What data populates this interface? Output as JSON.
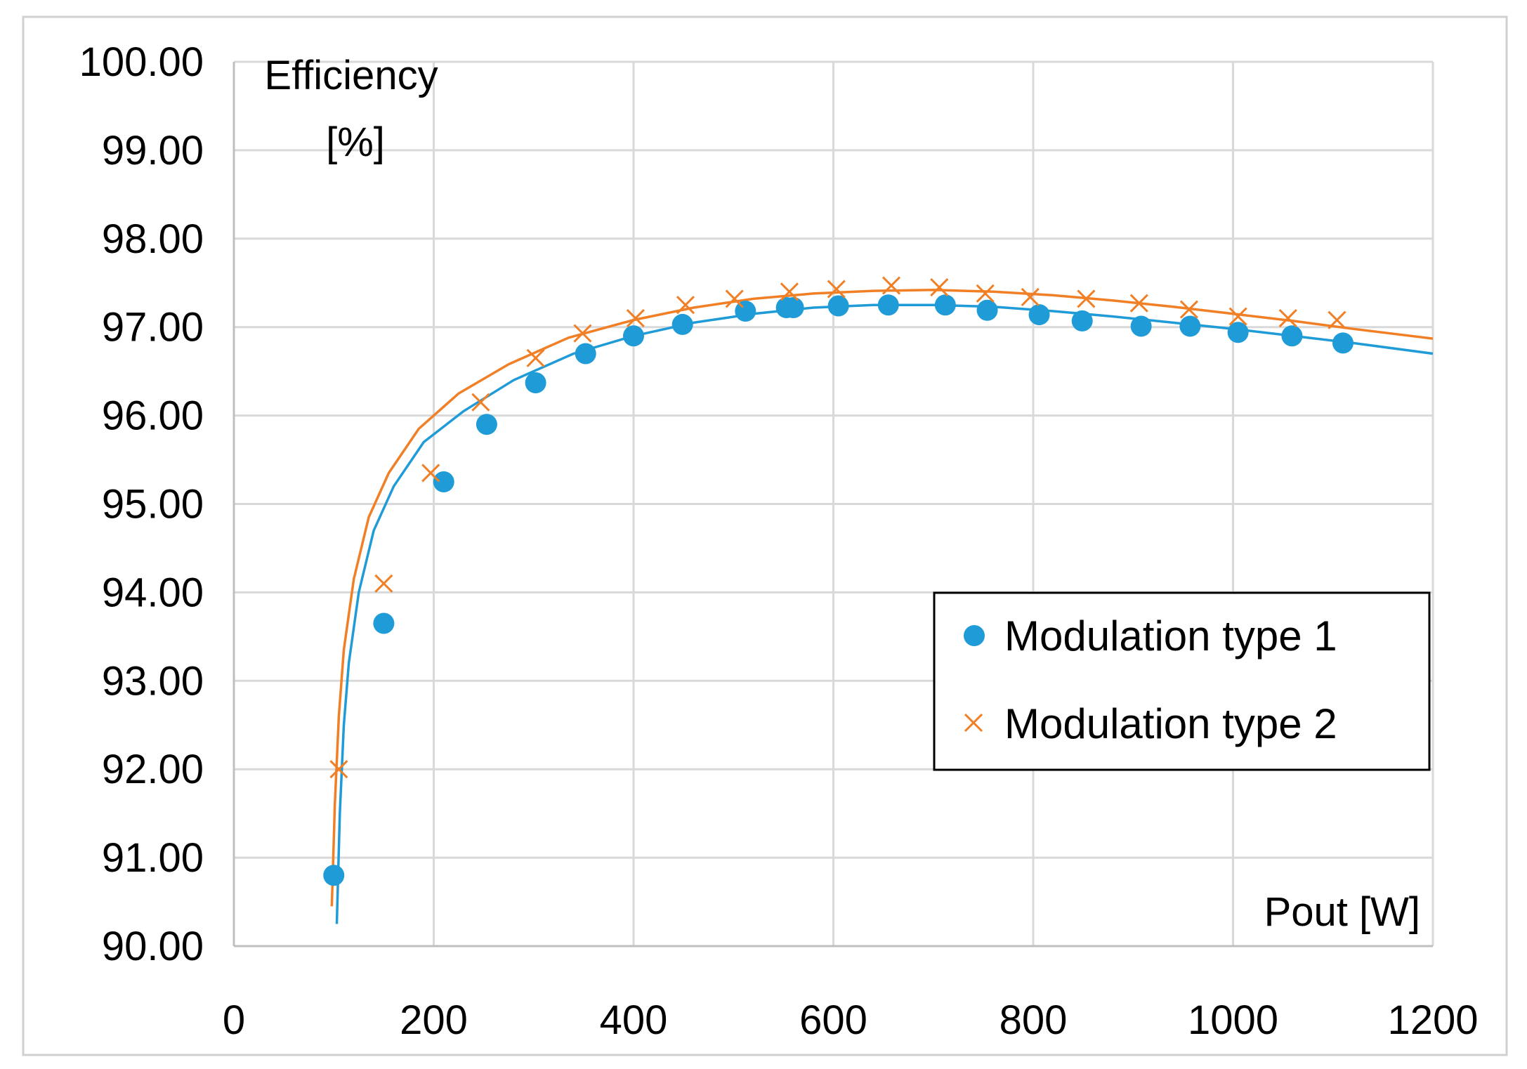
{
  "chart_data": {
    "type": "scatter",
    "title": "",
    "xlabel": "Pout [W]",
    "ylabel": [
      "Efficiency",
      "[%]"
    ],
    "xlim": [
      0,
      1200
    ],
    "ylim": [
      90,
      100
    ],
    "xticks": [
      0,
      200,
      400,
      600,
      800,
      1000,
      1200
    ],
    "yticks": [
      90,
      91,
      92,
      93,
      94,
      95,
      96,
      97,
      98,
      99,
      100
    ],
    "xtick_labels": [
      "0",
      "200",
      "400",
      "600",
      "800",
      "1000",
      "1200"
    ],
    "ytick_labels": [
      "90.00",
      "91.00",
      "92.00",
      "93.00",
      "94.00",
      "95.00",
      "96.00",
      "97.00",
      "98.00",
      "99.00",
      "100.00"
    ],
    "grid": true,
    "legend_position": "lower-right",
    "series": [
      {
        "name": "Modulation type 1",
        "marker": "circle",
        "color": "#1f9bd7",
        "points": [
          [
            100,
            90.8
          ],
          [
            150,
            93.65
          ],
          [
            210,
            95.25
          ],
          [
            253,
            95.9
          ],
          [
            302,
            96.37
          ],
          [
            352,
            96.7
          ],
          [
            400,
            96.9
          ],
          [
            449,
            97.03
          ],
          [
            512,
            97.18
          ],
          [
            553,
            97.22
          ],
          [
            560,
            97.22
          ],
          [
            605,
            97.24
          ],
          [
            655,
            97.25
          ],
          [
            712,
            97.25
          ],
          [
            754,
            97.19
          ],
          [
            806,
            97.14
          ],
          [
            849,
            97.07
          ],
          [
            908,
            97.01
          ],
          [
            957,
            97.01
          ],
          [
            1005,
            96.94
          ],
          [
            1059,
            96.9
          ],
          [
            1110,
            96.82
          ]
        ],
        "trendline": [
          [
            103,
            90.25
          ],
          [
            106,
            91.5
          ],
          [
            110,
            92.5
          ],
          [
            115,
            93.2
          ],
          [
            125,
            94.0
          ],
          [
            140,
            94.7
          ],
          [
            160,
            95.2
          ],
          [
            190,
            95.7
          ],
          [
            230,
            96.05
          ],
          [
            280,
            96.4
          ],
          [
            340,
            96.7
          ],
          [
            400,
            96.9
          ],
          [
            460,
            97.05
          ],
          [
            520,
            97.15
          ],
          [
            580,
            97.22
          ],
          [
            640,
            97.25
          ],
          [
            700,
            97.25
          ],
          [
            760,
            97.23
          ],
          [
            820,
            97.18
          ],
          [
            880,
            97.12
          ],
          [
            940,
            97.05
          ],
          [
            1000,
            96.98
          ],
          [
            1060,
            96.9
          ],
          [
            1120,
            96.82
          ],
          [
            1200,
            96.7
          ]
        ]
      },
      {
        "name": "Modulation type 2",
        "marker": "x",
        "color": "#f07f26",
        "points": [
          [
            105,
            92.0
          ],
          [
            150,
            94.1
          ],
          [
            197,
            95.35
          ],
          [
            247,
            96.15
          ],
          [
            302,
            96.65
          ],
          [
            349,
            96.93
          ],
          [
            402,
            97.1
          ],
          [
            452,
            97.25
          ],
          [
            501,
            97.32
          ],
          [
            556,
            97.4
          ],
          [
            603,
            97.43
          ],
          [
            658,
            97.47
          ],
          [
            706,
            97.45
          ],
          [
            752,
            97.38
          ],
          [
            797,
            97.34
          ],
          [
            853,
            97.32
          ],
          [
            906,
            97.27
          ],
          [
            956,
            97.2
          ],
          [
            1005,
            97.12
          ],
          [
            1055,
            97.1
          ],
          [
            1104,
            97.08
          ]
        ],
        "trendline": [
          [
            98,
            90.45
          ],
          [
            101,
            91.6
          ],
          [
            105,
            92.6
          ],
          [
            110,
            93.35
          ],
          [
            120,
            94.15
          ],
          [
            135,
            94.85
          ],
          [
            155,
            95.35
          ],
          [
            185,
            95.85
          ],
          [
            225,
            96.25
          ],
          [
            275,
            96.58
          ],
          [
            335,
            96.88
          ],
          [
            400,
            97.08
          ],
          [
            460,
            97.22
          ],
          [
            520,
            97.32
          ],
          [
            580,
            97.38
          ],
          [
            640,
            97.41
          ],
          [
            700,
            97.42
          ],
          [
            760,
            97.4
          ],
          [
            820,
            97.36
          ],
          [
            880,
            97.3
          ],
          [
            940,
            97.23
          ],
          [
            1000,
            97.15
          ],
          [
            1060,
            97.07
          ],
          [
            1120,
            96.98
          ],
          [
            1200,
            96.87
          ]
        ]
      }
    ]
  }
}
